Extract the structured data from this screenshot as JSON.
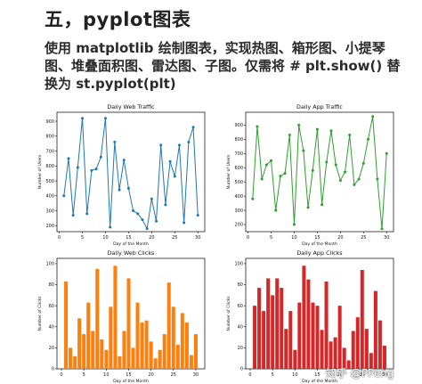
{
  "header": {
    "title": "五，pyplot图表",
    "lines": [
      "使用 matplotlib 绘制图表，实现热图、箱形图、小提琴",
      "图、堆叠面积图、雷达图、子图。仅需将 # plt.show() 替",
      "换为 st.pyplot(plt)"
    ]
  },
  "watermark": "知乎 @PPeng",
  "chart_data": [
    {
      "type": "line",
      "title": "Daily Web Traffic",
      "xlabel": "Day of the Month",
      "ylabel": "Number of Users",
      "color": "#1f77b4",
      "x": [
        1,
        2,
        3,
        4,
        5,
        6,
        7,
        8,
        9,
        10,
        11,
        12,
        13,
        14,
        15,
        16,
        17,
        18,
        19,
        20,
        21,
        22,
        23,
        24,
        25,
        26,
        27,
        28,
        29,
        30
      ],
      "values": [
        400,
        650,
        270,
        590,
        920,
        280,
        570,
        580,
        660,
        920,
        190,
        760,
        440,
        640,
        450,
        300,
        280,
        240,
        180,
        380,
        230,
        740,
        340,
        630,
        530,
        740,
        220,
        760,
        860,
        270
      ],
      "xlim": [
        -0.5,
        31.5
      ],
      "ylim": [
        160,
        960
      ],
      "xticks": [
        0,
        5,
        10,
        15,
        20,
        25,
        30
      ],
      "yticks": [
        200,
        300,
        400,
        500,
        600,
        700,
        800,
        900
      ]
    },
    {
      "type": "line",
      "title": "Daily App Traffic",
      "xlabel": "Day of the Month",
      "ylabel": "Number of Users",
      "color": "#2ca02c",
      "x": [
        1,
        2,
        3,
        4,
        5,
        6,
        7,
        8,
        9,
        10,
        11,
        12,
        13,
        14,
        15,
        16,
        17,
        18,
        19,
        20,
        21,
        22,
        23,
        24,
        25,
        26,
        27,
        28,
        29,
        30
      ],
      "values": [
        380,
        890,
        520,
        620,
        650,
        300,
        540,
        560,
        830,
        200,
        900,
        720,
        320,
        580,
        870,
        340,
        640,
        860,
        620,
        510,
        570,
        830,
        480,
        520,
        630,
        800,
        960,
        520,
        170,
        700
      ],
      "xlim": [
        -0.5,
        31.5
      ],
      "ylim": [
        150,
        990
      ],
      "xticks": [
        0,
        5,
        10,
        15,
        20,
        25,
        30
      ],
      "yticks": [
        200,
        300,
        400,
        500,
        600,
        700,
        800,
        900
      ]
    },
    {
      "type": "bar",
      "title": "Daily Web Clicks",
      "xlabel": "Day of the Month",
      "ylabel": "Number of Clicks",
      "color": "#ff7f0e",
      "x": [
        1,
        2,
        3,
        4,
        5,
        6,
        7,
        8,
        9,
        10,
        11,
        12,
        13,
        14,
        15,
        16,
        17,
        18,
        19,
        20,
        21,
        22,
        23,
        24,
        25,
        26,
        27,
        28,
        29,
        30
      ],
      "values": [
        83,
        20,
        12,
        48,
        33,
        63,
        36,
        95,
        28,
        18,
        59,
        98,
        12,
        36,
        86,
        20,
        63,
        44,
        46,
        26,
        10,
        18,
        33,
        82,
        59,
        23,
        53,
        44,
        13,
        33
      ],
      "xlim": [
        -1,
        32
      ],
      "ylim": [
        0,
        105
      ],
      "xticks": [
        0,
        5,
        10,
        15,
        20,
        25,
        30
      ],
      "yticks": [
        0,
        20,
        40,
        60,
        80,
        100
      ]
    },
    {
      "type": "bar",
      "title": "Daily App Clicks",
      "xlabel": "Day of the Month",
      "ylabel": "Number of Clicks",
      "color": "#d62728",
      "x": [
        1,
        2,
        3,
        4,
        5,
        6,
        7,
        8,
        9,
        10,
        11,
        12,
        13,
        14,
        15,
        16,
        17,
        18,
        19,
        20,
        21,
        22,
        23,
        24,
        25,
        26,
        27,
        28,
        29,
        30
      ],
      "values": [
        60,
        77,
        55,
        86,
        70,
        86,
        77,
        38,
        55,
        18,
        63,
        98,
        85,
        63,
        60,
        37,
        83,
        26,
        30,
        60,
        20,
        8,
        36,
        49,
        94,
        38,
        15,
        74,
        46,
        22
      ],
      "xlim": [
        -1,
        32
      ],
      "ylim": [
        0,
        105
      ],
      "xticks": [
        0,
        5,
        10,
        15,
        20,
        25,
        30
      ],
      "yticks": [
        0,
        20,
        40,
        60,
        80,
        100
      ]
    }
  ]
}
